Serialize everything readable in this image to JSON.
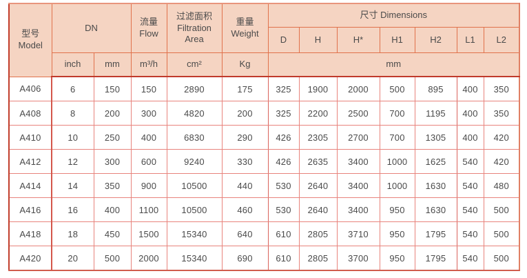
{
  "colors": {
    "header_bg": "#f5d4c2",
    "header_border": "#e0714b",
    "body_border": "#e8837c",
    "frame_border_dark": "#c23e2c",
    "text": "#4a4a4a"
  },
  "header": {
    "model": "型号\nModel",
    "dn": "DN",
    "flow": "流量\nFlow",
    "filtration_area": "过滤面积\nFiltration\nArea",
    "weight": "重量\nWeight",
    "dimensions": "尺寸 Dimensions",
    "dimension_columns": [
      "D",
      "H",
      "H*",
      "H1",
      "H2",
      "L1",
      "L2"
    ],
    "units": {
      "inch": "inch",
      "mm": "mm",
      "flow": "m³/h",
      "area": "cm²",
      "weight": "Kg",
      "dimensions": "mm"
    }
  },
  "rows": [
    {
      "model": "A406",
      "inch": "6",
      "mm": "150",
      "flow": "150",
      "area": "2890",
      "weight": "175",
      "dims": [
        "325",
        "1900",
        "2000",
        "500",
        "895",
        "400",
        "350"
      ]
    },
    {
      "model": "A408",
      "inch": "8",
      "mm": "200",
      "flow": "300",
      "area": "4820",
      "weight": "200",
      "dims": [
        "325",
        "2200",
        "2500",
        "700",
        "1195",
        "400",
        "350"
      ]
    },
    {
      "model": "A410",
      "inch": "10",
      "mm": "250",
      "flow": "400",
      "area": "6830",
      "weight": "290",
      "dims": [
        "426",
        "2305",
        "2700",
        "700",
        "1305",
        "400",
        "420"
      ]
    },
    {
      "model": "A412",
      "inch": "12",
      "mm": "300",
      "flow": "600",
      "area": "9240",
      "weight": "330",
      "dims": [
        "426",
        "2635",
        "3400",
        "1000",
        "1625",
        "540",
        "420"
      ]
    },
    {
      "model": "A414",
      "inch": "14",
      "mm": "350",
      "flow": "900",
      "area": "10500",
      "weight": "440",
      "dims": [
        "530",
        "2640",
        "3400",
        "1000",
        "1630",
        "540",
        "480"
      ]
    },
    {
      "model": "A416",
      "inch": "16",
      "mm": "400",
      "flow": "1100",
      "area": "10500",
      "weight": "460",
      "dims": [
        "530",
        "2640",
        "3400",
        "950",
        "1630",
        "540",
        "500"
      ]
    },
    {
      "model": "A418",
      "inch": "18",
      "mm": "450",
      "flow": "1500",
      "area": "15340",
      "weight": "640",
      "dims": [
        "610",
        "2805",
        "3710",
        "950",
        "1795",
        "540",
        "500"
      ]
    },
    {
      "model": "A420",
      "inch": "20",
      "mm": "500",
      "flow": "2000",
      "area": "15340",
      "weight": "690",
      "dims": [
        "610",
        "2805",
        "3700",
        "950",
        "1795",
        "540",
        "500"
      ]
    }
  ]
}
